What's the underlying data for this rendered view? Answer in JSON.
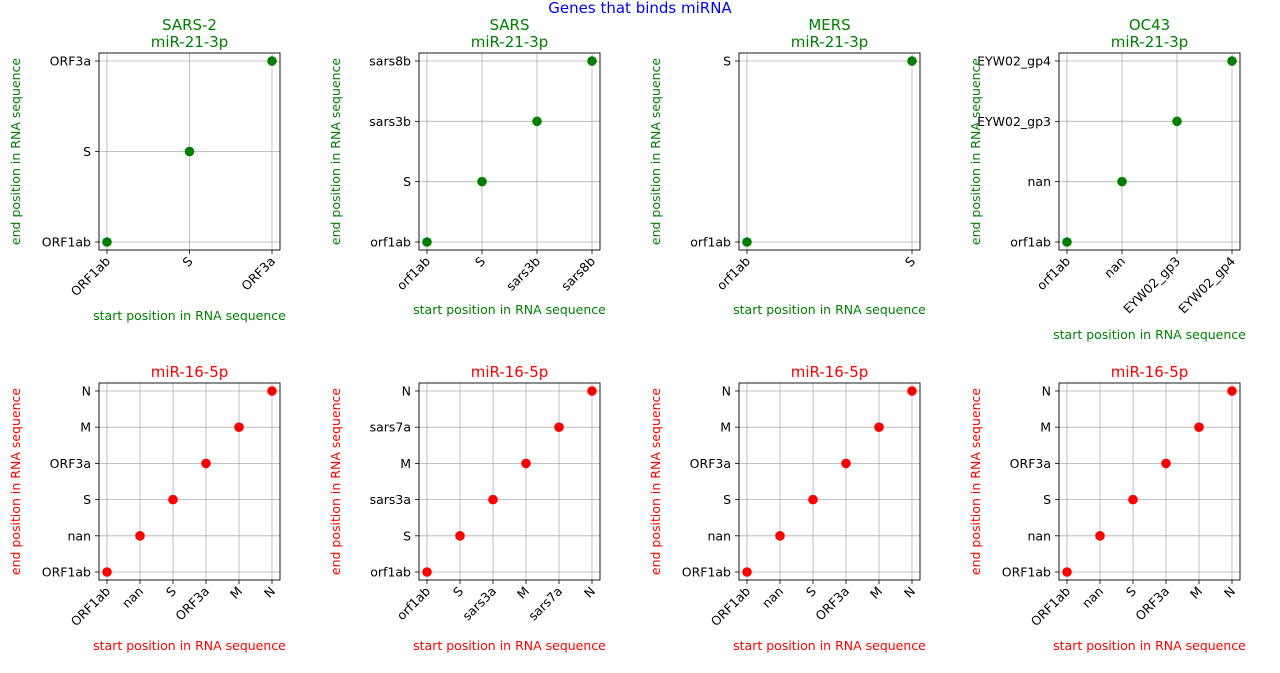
{
  "suptitle": "Genes that binds miRNA",
  "colors": {
    "suptitle": "#0000ff",
    "top_row": "#008000",
    "bottom_row": "#ff0000",
    "grid": "#b0b0b0",
    "axes": "#000000"
  },
  "chart_data": [
    {
      "type": "scatter",
      "row": "top",
      "title_lines": [
        "SARS-2",
        "miR-21-3p"
      ],
      "xlabel": "start position in RNA sequence",
      "ylabel": "end position in RNA sequence",
      "categories": [
        "ORF1ab",
        "S",
        "ORF3a"
      ],
      "points": [
        {
          "x": "ORF1ab",
          "y": "ORF1ab"
        },
        {
          "x": "S",
          "y": "S"
        },
        {
          "x": "ORF3a",
          "y": "ORF3a"
        }
      ],
      "grid": true
    },
    {
      "type": "scatter",
      "row": "top",
      "title_lines": [
        "SARS",
        "miR-21-3p"
      ],
      "xlabel": "start position in RNA sequence",
      "ylabel": "end position in RNA sequence",
      "categories": [
        "orf1ab",
        "S",
        "sars3b",
        "sars8b"
      ],
      "points": [
        {
          "x": "orf1ab",
          "y": "orf1ab"
        },
        {
          "x": "S",
          "y": "S"
        },
        {
          "x": "sars3b",
          "y": "sars3b"
        },
        {
          "x": "sars8b",
          "y": "sars8b"
        }
      ],
      "grid": true
    },
    {
      "type": "scatter",
      "row": "top",
      "title_lines": [
        "MERS",
        "miR-21-3p"
      ],
      "xlabel": "start position in RNA sequence",
      "ylabel": "end position in RNA sequence",
      "categories": [
        "orf1ab",
        "S"
      ],
      "points": [
        {
          "x": "orf1ab",
          "y": "orf1ab"
        },
        {
          "x": "S",
          "y": "S"
        }
      ],
      "grid": true
    },
    {
      "type": "scatter",
      "row": "top",
      "title_lines": [
        "OC43",
        "miR-21-3p"
      ],
      "xlabel": "start position in RNA sequence",
      "ylabel": "end position in RNA sequence",
      "categories": [
        "orf1ab",
        "nan",
        "EYW02_gp3",
        "EYW02_gp4"
      ],
      "points": [
        {
          "x": "orf1ab",
          "y": "orf1ab"
        },
        {
          "x": "nan",
          "y": "nan"
        },
        {
          "x": "EYW02_gp3",
          "y": "EYW02_gp3"
        },
        {
          "x": "EYW02_gp4",
          "y": "EYW02_gp4"
        }
      ],
      "grid": true
    },
    {
      "type": "scatter",
      "row": "bottom",
      "title_lines": [
        "miR-16-5p"
      ],
      "xlabel": "start position in RNA sequence",
      "ylabel": "end position in RNA sequence",
      "categories": [
        "ORF1ab",
        "nan",
        "S",
        "ORF3a",
        "M",
        "N"
      ],
      "points": [
        {
          "x": "ORF1ab",
          "y": "ORF1ab"
        },
        {
          "x": "nan",
          "y": "nan"
        },
        {
          "x": "S",
          "y": "S"
        },
        {
          "x": "ORF3a",
          "y": "ORF3a"
        },
        {
          "x": "M",
          "y": "M"
        },
        {
          "x": "N",
          "y": "N"
        }
      ],
      "grid": true
    },
    {
      "type": "scatter",
      "row": "bottom",
      "title_lines": [
        "miR-16-5p"
      ],
      "xlabel": "start position in RNA sequence",
      "ylabel": "end position in RNA sequence",
      "categories": [
        "orf1ab",
        "S",
        "sars3a",
        "M",
        "sars7a",
        "N"
      ],
      "points": [
        {
          "x": "orf1ab",
          "y": "orf1ab"
        },
        {
          "x": "S",
          "y": "S"
        },
        {
          "x": "sars3a",
          "y": "sars3a"
        },
        {
          "x": "M",
          "y": "M"
        },
        {
          "x": "sars7a",
          "y": "sars7a"
        },
        {
          "x": "N",
          "y": "N"
        }
      ],
      "grid": true
    },
    {
      "type": "scatter",
      "row": "bottom",
      "title_lines": [
        "miR-16-5p"
      ],
      "xlabel": "start position in RNA sequence",
      "ylabel": "end position in RNA sequence",
      "categories": [
        "ORF1ab",
        "nan",
        "S",
        "ORF3a",
        "M",
        "N"
      ],
      "points": [
        {
          "x": "ORF1ab",
          "y": "ORF1ab"
        },
        {
          "x": "nan",
          "y": "nan"
        },
        {
          "x": "S",
          "y": "S"
        },
        {
          "x": "ORF3a",
          "y": "ORF3a"
        },
        {
          "x": "M",
          "y": "M"
        },
        {
          "x": "N",
          "y": "N"
        }
      ],
      "grid": true
    },
    {
      "type": "scatter",
      "row": "bottom",
      "title_lines": [
        "miR-16-5p"
      ],
      "xlabel": "start position in RNA sequence",
      "ylabel": "end position in RNA sequence",
      "categories": [
        "ORF1ab",
        "nan",
        "S",
        "ORF3a",
        "M",
        "N"
      ],
      "points": [
        {
          "x": "ORF1ab",
          "y": "ORF1ab"
        },
        {
          "x": "nan",
          "y": "nan"
        },
        {
          "x": "S",
          "y": "S"
        },
        {
          "x": "ORF3a",
          "y": "ORF3a"
        },
        {
          "x": "M",
          "y": "M"
        },
        {
          "x": "N",
          "y": "N"
        }
      ],
      "grid": true
    }
  ]
}
